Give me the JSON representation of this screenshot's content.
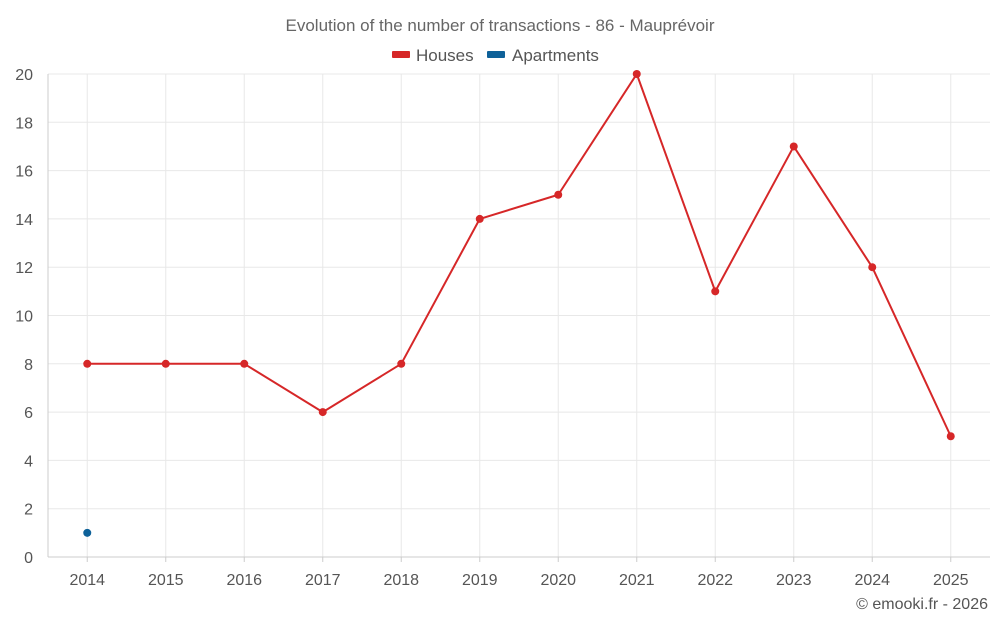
{
  "chart_data": {
    "type": "line",
    "title": "Evolution of the number of transactions - 86 - Mauprévoir",
    "xlabel": "",
    "ylabel": "",
    "x": [
      "2014",
      "2015",
      "2016",
      "2017",
      "2018",
      "2019",
      "2020",
      "2021",
      "2022",
      "2023",
      "2024",
      "2025"
    ],
    "ylim": [
      0,
      20
    ],
    "yticks": [
      0,
      2,
      4,
      6,
      8,
      10,
      12,
      14,
      16,
      18,
      20
    ],
    "grid": true,
    "legend_position": "top-center",
    "series": [
      {
        "name": "Houses",
        "color": "#d62728",
        "values": [
          8,
          8,
          8,
          6,
          8,
          14,
          15,
          20,
          11,
          17,
          12,
          5
        ]
      },
      {
        "name": "Apartments",
        "color": "#0e6199",
        "values": [
          1,
          null,
          null,
          null,
          null,
          null,
          null,
          null,
          null,
          null,
          null,
          null
        ]
      }
    ]
  },
  "credit": "© emooki.fr - 2026"
}
